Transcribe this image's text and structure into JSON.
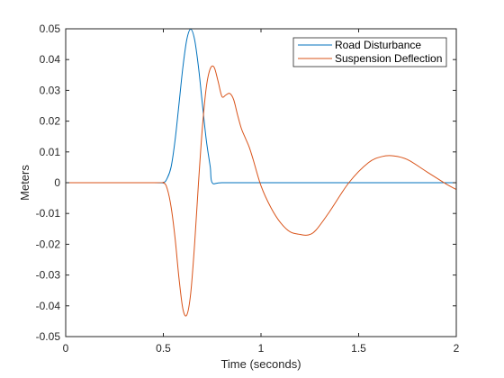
{
  "chart_data": {
    "type": "line",
    "title": "",
    "xlabel": "Time (seconds)",
    "ylabel": "Meters",
    "xlim": [
      0,
      2
    ],
    "ylim": [
      -0.05,
      0.05
    ],
    "grid": false,
    "legend_position": "top-right",
    "x_ticks": [
      0,
      0.5,
      1,
      1.5,
      2
    ],
    "x_tick_labels": [
      "0",
      "0.5",
      "1",
      "1.5",
      "2"
    ],
    "y_ticks": [
      -0.05,
      -0.04,
      -0.03,
      -0.02,
      -0.01,
      0,
      0.01,
      0.02,
      0.03,
      0.04,
      0.05
    ],
    "y_tick_labels": [
      "-0.05",
      "-0.04",
      "-0.03",
      "-0.02",
      "-0.01",
      "0",
      "0.01",
      "0.02",
      "0.03",
      "0.04",
      "0.05"
    ],
    "series": [
      {
        "name": "Road Disturbance",
        "color": "#0072BD",
        "x": [
          0,
          0.45,
          0.5,
          0.52,
          0.54,
          0.56,
          0.58,
          0.6,
          0.62,
          0.64,
          0.66,
          0.68,
          0.7,
          0.72,
          0.74,
          0.75,
          0.8,
          1.0,
          1.5,
          2.0
        ],
        "y": [
          0,
          0,
          0,
          0.0015,
          0.0052,
          0.0138,
          0.0255,
          0.0375,
          0.0465,
          0.0499,
          0.0465,
          0.0375,
          0.0255,
          0.0138,
          0.0052,
          0,
          0,
          0,
          0,
          0
        ]
      },
      {
        "name": "Suspension Deflection",
        "color": "#D95319",
        "x": [
          0,
          0.45,
          0.5,
          0.52,
          0.54,
          0.56,
          0.58,
          0.6,
          0.62,
          0.64,
          0.66,
          0.68,
          0.7,
          0.72,
          0.74,
          0.76,
          0.78,
          0.8,
          0.82,
          0.84,
          0.86,
          0.88,
          0.9,
          0.92,
          0.94,
          0.96,
          1.0,
          1.05,
          1.1,
          1.15,
          1.2,
          1.24,
          1.28,
          1.35,
          1.45,
          1.55,
          1.62,
          1.68,
          1.75,
          1.85,
          1.95,
          2.0
        ],
        "y": [
          0,
          0,
          0,
          -0.002,
          -0.008,
          -0.018,
          -0.031,
          -0.041,
          -0.043,
          -0.036,
          -0.02,
          0.0,
          0.018,
          0.031,
          0.037,
          0.0375,
          0.033,
          0.028,
          0.0285,
          0.029,
          0.027,
          0.022,
          0.0175,
          0.0145,
          0.0115,
          0.0075,
          -0.001,
          -0.008,
          -0.013,
          -0.016,
          -0.0168,
          -0.017,
          -0.0155,
          -0.0095,
          0.0,
          0.0065,
          0.0085,
          0.0087,
          0.0075,
          0.0035,
          -0.0005,
          -0.0022
        ]
      }
    ]
  }
}
